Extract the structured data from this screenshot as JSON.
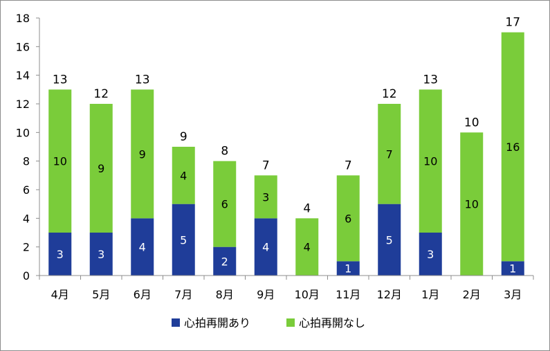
{
  "chart_data": {
    "type": "bar",
    "stacked": true,
    "categories": [
      "4月",
      "5月",
      "6月",
      "7月",
      "8月",
      "9月",
      "10月",
      "11月",
      "12月",
      "1月",
      "2月",
      "3月"
    ],
    "series": [
      {
        "name": "心拍再開あり",
        "values": [
          3,
          3,
          4,
          5,
          2,
          4,
          0,
          1,
          5,
          3,
          0,
          1
        ],
        "color": "#1f3d99",
        "label_color": "#ffffff"
      },
      {
        "name": "心拍再開なし",
        "values": [
          10,
          9,
          9,
          4,
          6,
          3,
          4,
          6,
          7,
          10,
          10,
          16
        ],
        "color": "#7acc3a",
        "label_color": "#000000"
      }
    ],
    "totals": [
      13,
      12,
      13,
      9,
      8,
      7,
      4,
      7,
      12,
      13,
      10,
      17
    ],
    "ylim": [
      0,
      18
    ],
    "yticks": [
      0,
      2,
      4,
      6,
      8,
      10,
      12,
      14,
      16,
      18
    ],
    "grid": false,
    "legend_position": "bottom",
    "title": "",
    "xlabel": "",
    "ylabel": ""
  }
}
